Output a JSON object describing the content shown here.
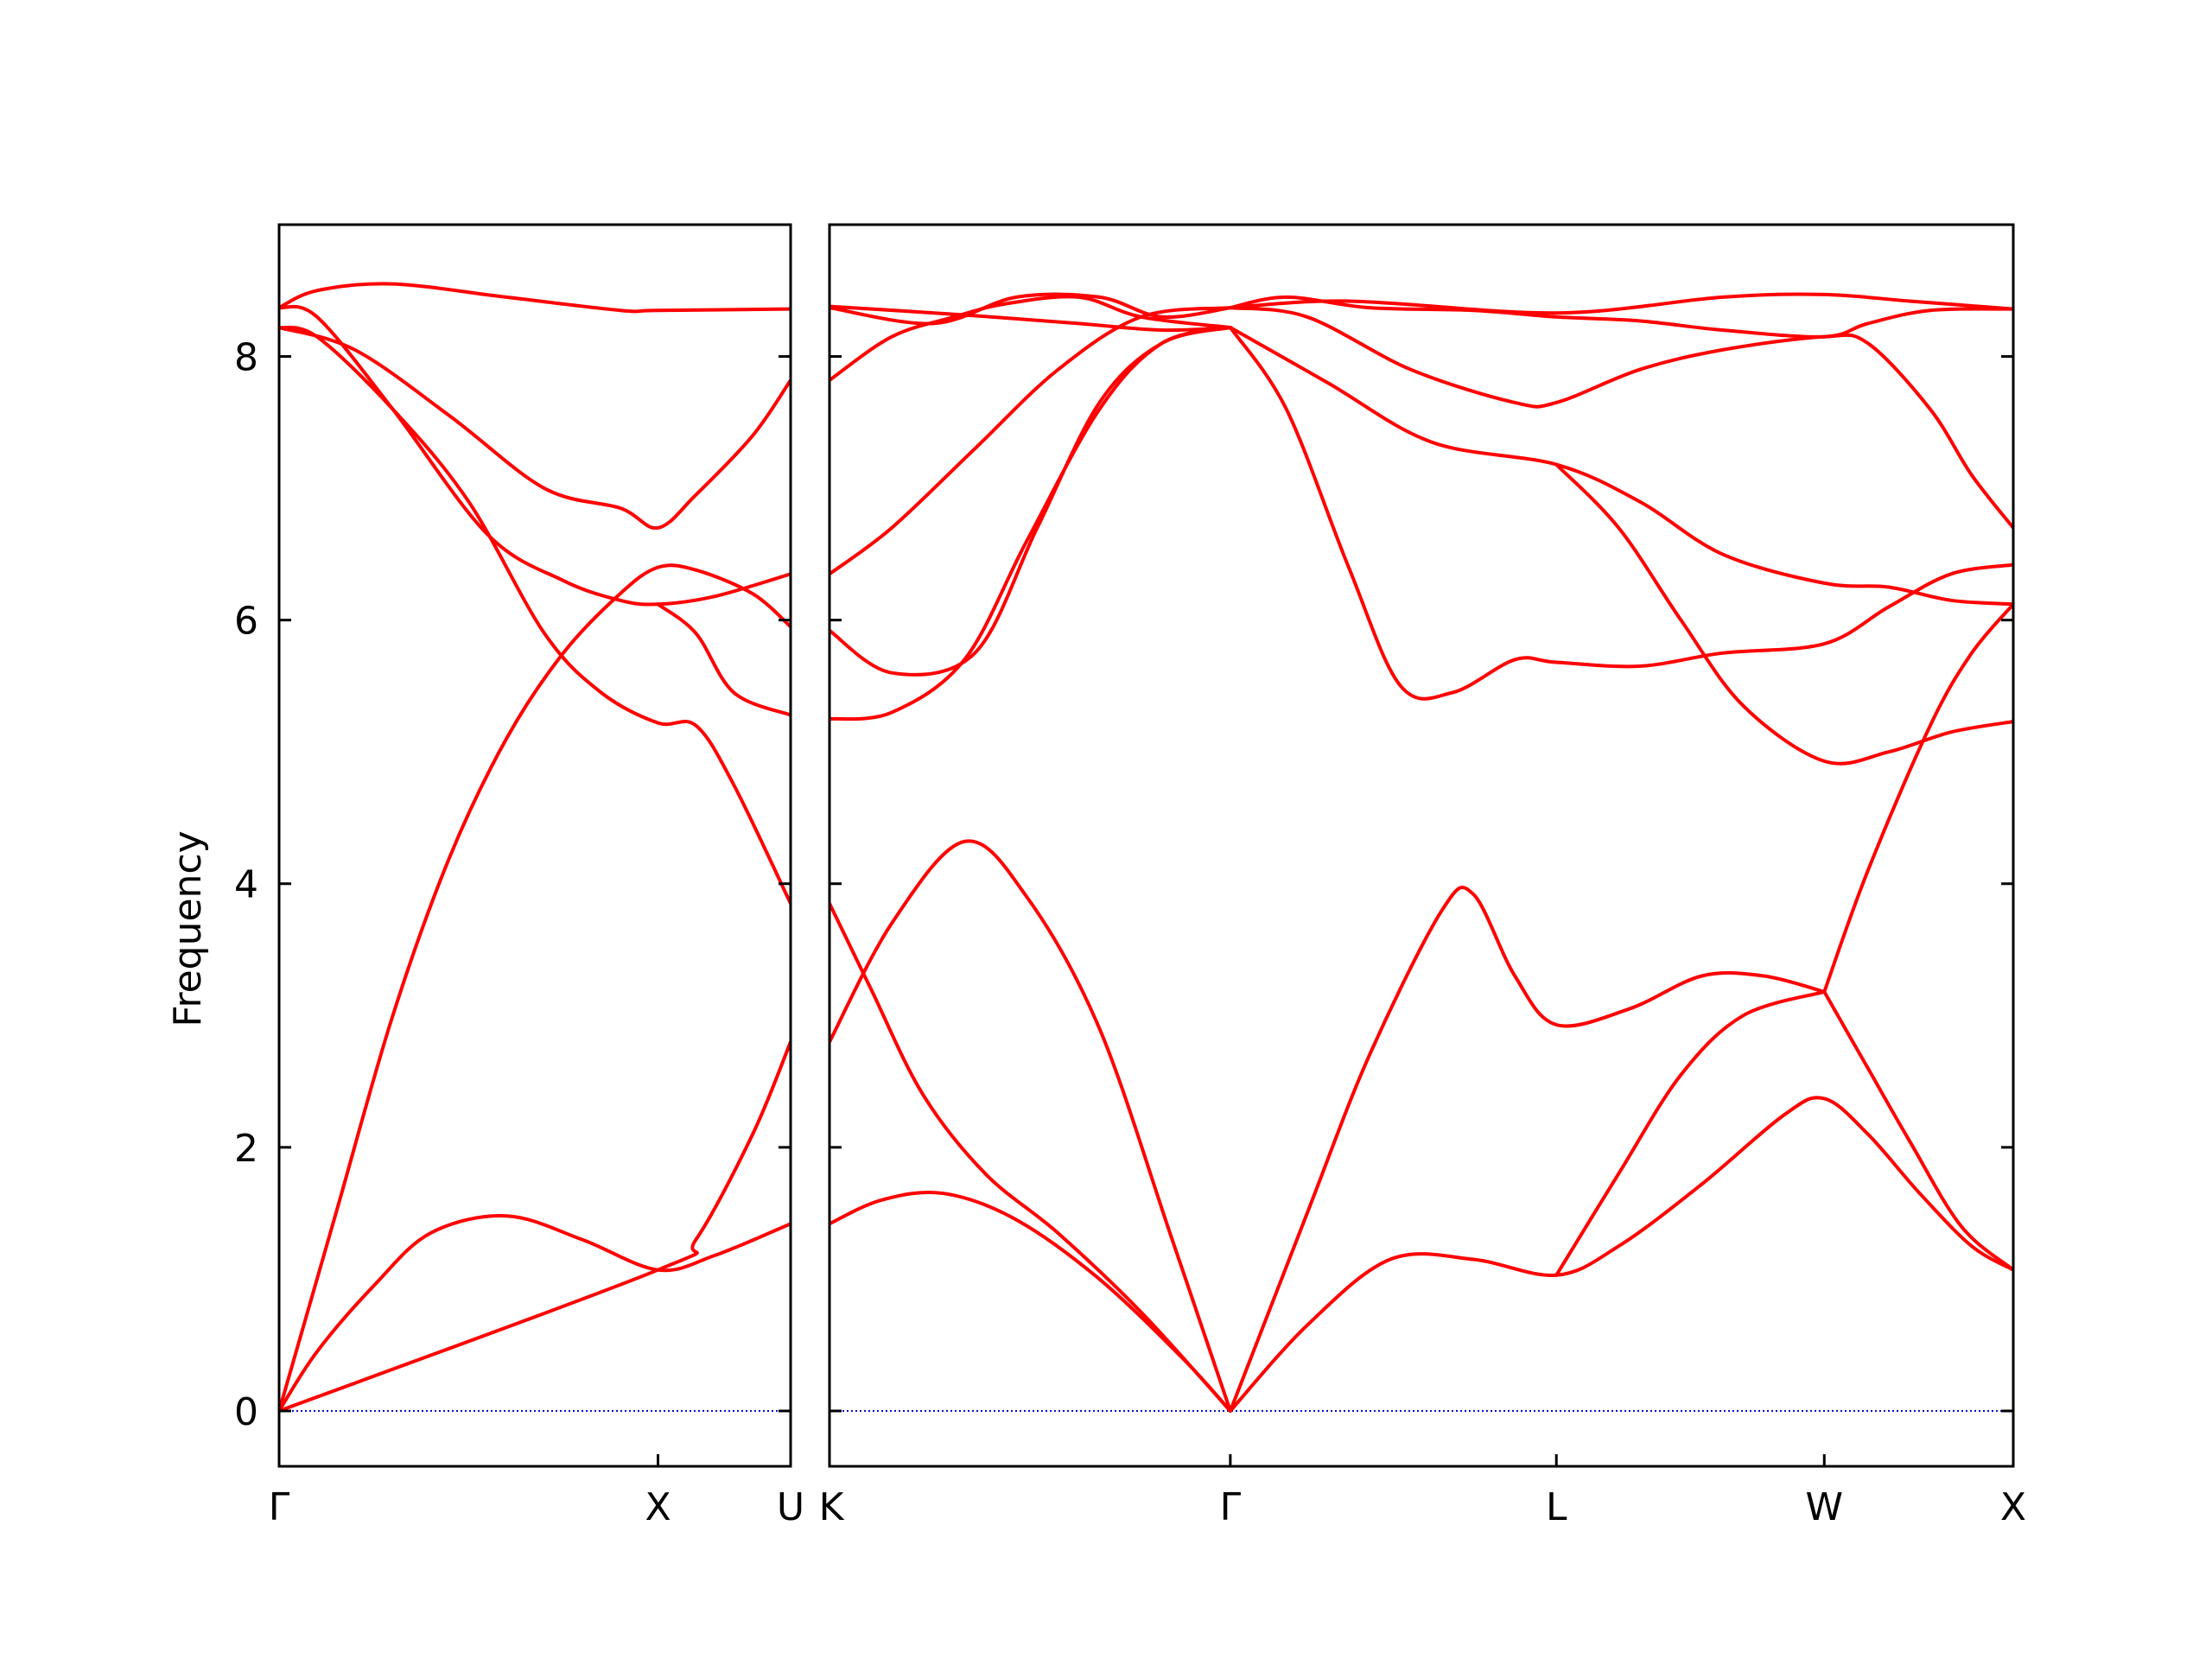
{
  "chart_data": {
    "type": "line",
    "ylabel": "Frequency",
    "ylim": [
      -0.42,
      9.0
    ],
    "yticks": [
      0,
      2,
      4,
      6,
      8
    ],
    "colors": {
      "bands": "#ff0000",
      "zero_line": "#0000cc",
      "axes": "#000000"
    },
    "panels": [
      {
        "name": "Γ-X-U",
        "xlim": [
          0,
          1.35
        ],
        "labels": [
          {
            "pos": 0,
            "text": "Γ"
          },
          {
            "pos": 1.0,
            "text": "X"
          },
          {
            "pos": 1.35,
            "text": "U"
          }
        ],
        "bands": [
          [
            [
              0,
              0
            ],
            [
              0.1,
              0.45
            ],
            [
              0.25,
              0.95
            ],
            [
              0.4,
              1.35
            ],
            [
              0.6,
              1.48
            ],
            [
              0.8,
              1.3
            ],
            [
              1.0,
              1.07
            ],
            [
              1.15,
              1.18
            ],
            [
              1.35,
              1.42
            ]
          ],
          [
            [
              0,
              0
            ],
            [
              0.15,
              1.5
            ],
            [
              0.3,
              3.0
            ],
            [
              0.45,
              4.2
            ],
            [
              0.6,
              5.1
            ],
            [
              0.75,
              5.75
            ],
            [
              0.9,
              6.2
            ],
            [
              1.0,
              6.4
            ],
            [
              1.1,
              6.38
            ],
            [
              1.25,
              6.2
            ],
            [
              1.35,
              5.95
            ]
          ],
          [
            [
              0,
              8.22
            ],
            [
              0.1,
              8.15
            ],
            [
              0.3,
              7.6
            ],
            [
              0.5,
              6.9
            ],
            [
              0.7,
              5.9
            ],
            [
              0.85,
              5.45
            ],
            [
              1.0,
              5.22
            ],
            [
              1.1,
              5.2
            ],
            [
              1.2,
              4.75
            ],
            [
              1.35,
              3.85
            ]
          ],
          [
            [
              0,
              8.37
            ],
            [
              0.1,
              8.3
            ],
            [
              0.3,
              7.6
            ],
            [
              0.55,
              6.65
            ],
            [
              0.75,
              6.3
            ],
            [
              0.9,
              6.15
            ],
            [
              1.0,
              6.12
            ],
            [
              1.15,
              6.18
            ],
            [
              1.35,
              6.35
            ]
          ],
          [
            [
              0,
              8.22
            ],
            [
              0.2,
              8.05
            ],
            [
              0.45,
              7.55
            ],
            [
              0.7,
              7.0
            ],
            [
              0.9,
              6.85
            ],
            [
              1.0,
              6.7
            ],
            [
              1.1,
              6.95
            ],
            [
              1.25,
              7.4
            ],
            [
              1.35,
              7.82
            ]
          ],
          [
            [
              0,
              8.37
            ],
            [
              0.1,
              8.5
            ],
            [
              0.3,
              8.55
            ],
            [
              0.6,
              8.45
            ],
            [
              0.9,
              8.35
            ],
            [
              1.0,
              8.35
            ],
            [
              1.35,
              8.36
            ]
          ],
          [
            [
              0,
              0
            ],
            [
              1.0,
              1.07
            ],
            [
              1.1,
              1.3
            ],
            [
              1.25,
              2.1
            ],
            [
              1.35,
              2.8
            ]
          ],
          [
            [
              1.0,
              6.12
            ],
            [
              1.1,
              5.9
            ],
            [
              1.2,
              5.45
            ],
            [
              1.35,
              5.28
            ]
          ]
        ]
      },
      {
        "name": "K-Γ-L-W-X",
        "xlim": [
          0,
          5.7
        ],
        "labels": [
          {
            "pos": 0,
            "text": "K"
          },
          {
            "pos": 1.93,
            "text": "Γ"
          },
          {
            "pos": 3.5,
            "text": "L"
          },
          {
            "pos": 4.79,
            "text": "W"
          },
          {
            "pos": 5.7,
            "text": "X"
          }
        ],
        "bands": [
          [
            [
              0,
              1.42
            ],
            [
              0.25,
              1.6
            ],
            [
              0.55,
              1.65
            ],
            [
              0.9,
              1.45
            ],
            [
              1.3,
              1.0
            ],
            [
              1.7,
              0.4
            ],
            [
              1.93,
              0
            ]
          ],
          [
            [
              0,
              2.8
            ],
            [
              0.3,
              3.7
            ],
            [
              0.65,
              4.32
            ],
            [
              0.95,
              3.9
            ],
            [
              1.3,
              2.9
            ],
            [
              1.65,
              1.3
            ],
            [
              1.93,
              0
            ]
          ],
          [
            [
              0,
              3.85
            ],
            [
              0.2,
              3.2
            ],
            [
              0.45,
              2.4
            ],
            [
              0.75,
              1.8
            ],
            [
              1.1,
              1.35
            ],
            [
              1.5,
              0.75
            ],
            [
              1.93,
              0
            ]
          ],
          [
            [
              0,
              5.25
            ],
            [
              0.3,
              5.3
            ],
            [
              0.65,
              5.7
            ],
            [
              0.95,
              6.6
            ],
            [
              1.3,
              7.6
            ],
            [
              1.6,
              8.1
            ],
            [
              1.93,
              8.22
            ]
          ],
          [
            [
              0,
              5.92
            ],
            [
              0.3,
              5.6
            ],
            [
              0.7,
              5.75
            ],
            [
              1.0,
              6.7
            ],
            [
              1.3,
              7.65
            ],
            [
              1.6,
              8.1
            ],
            [
              1.93,
              8.22
            ]
          ],
          [
            [
              0,
              6.35
            ],
            [
              0.3,
              6.7
            ],
            [
              0.7,
              7.3
            ],
            [
              1.1,
              7.9
            ],
            [
              1.5,
              8.3
            ],
            [
              1.93,
              8.37
            ]
          ],
          [
            [
              0,
              7.82
            ],
            [
              0.3,
              8.15
            ],
            [
              0.6,
              8.3
            ],
            [
              0.85,
              8.4
            ],
            [
              1.2,
              8.45
            ],
            [
              1.5,
              8.3
            ],
            [
              1.93,
              8.22
            ]
          ],
          [
            [
              0,
              8.37
            ],
            [
              0.5,
              8.25
            ],
            [
              0.9,
              8.45
            ],
            [
              1.3,
              8.45
            ],
            [
              1.6,
              8.3
            ],
            [
              1.93,
              8.37
            ]
          ],
          [
            [
              0,
              8.38
            ],
            [
              0.6,
              8.32
            ],
            [
              1.2,
              8.25
            ],
            [
              1.6,
              8.2
            ],
            [
              1.93,
              8.22
            ]
          ],
          [
            [
              1.93,
              0
            ],
            [
              2.3,
              0.65
            ],
            [
              2.7,
              1.15
            ],
            [
              3.1,
              1.15
            ],
            [
              3.5,
              1.03
            ],
            [
              3.8,
              1.25
            ],
            [
              4.2,
              1.72
            ],
            [
              4.6,
              2.25
            ],
            [
              4.79,
              2.37
            ],
            [
              5.0,
              2.1
            ],
            [
              5.25,
              1.65
            ],
            [
              5.5,
              1.25
            ],
            [
              5.7,
              1.07
            ]
          ],
          [
            [
              1.93,
              0
            ],
            [
              2.3,
              1.5
            ],
            [
              2.6,
              2.7
            ],
            [
              2.95,
              3.8
            ],
            [
              3.1,
              3.92
            ],
            [
              3.3,
              3.3
            ],
            [
              3.5,
              2.93
            ],
            [
              3.85,
              3.05
            ],
            [
              4.2,
              3.3
            ],
            [
              4.5,
              3.3
            ],
            [
              4.79,
              3.18
            ]
          ],
          [
            [
              3.5,
              1.03
            ],
            [
              3.8,
              1.8
            ],
            [
              4.1,
              2.55
            ],
            [
              4.4,
              3.0
            ],
            [
              4.79,
              3.18
            ]
          ],
          [
            [
              4.79,
              3.18
            ],
            [
              5.0,
              2.6
            ],
            [
              5.2,
              2.05
            ],
            [
              5.45,
              1.4
            ],
            [
              5.7,
              1.07
            ]
          ],
          [
            [
              4.79,
              3.18
            ],
            [
              5.0,
              4.1
            ],
            [
              5.3,
              5.2
            ],
            [
              5.5,
              5.75
            ],
            [
              5.7,
              6.12
            ]
          ],
          [
            [
              1.93,
              8.22
            ],
            [
              2.2,
              7.6
            ],
            [
              2.5,
              6.4
            ],
            [
              2.75,
              5.5
            ],
            [
              3.0,
              5.45
            ],
            [
              3.3,
              5.7
            ],
            [
              3.5,
              5.68
            ],
            [
              3.9,
              5.65
            ],
            [
              4.3,
              5.75
            ],
            [
              4.79,
              5.82
            ],
            [
              5.1,
              6.1
            ],
            [
              5.4,
              6.35
            ],
            [
              5.7,
              6.42
            ]
          ],
          [
            [
              1.93,
              8.22
            ],
            [
              2.4,
              7.8
            ],
            [
              2.9,
              7.35
            ],
            [
              3.5,
              7.18
            ],
            [
              3.9,
              6.9
            ],
            [
              4.3,
              6.5
            ],
            [
              4.79,
              6.28
            ],
            [
              5.1,
              6.25
            ],
            [
              5.4,
              6.15
            ],
            [
              5.7,
              6.12
            ]
          ],
          [
            [
              3.5,
              7.18
            ],
            [
              3.8,
              6.7
            ],
            [
              4.1,
              6.0
            ],
            [
              4.4,
              5.35
            ],
            [
              4.79,
              4.93
            ],
            [
              5.1,
              5.0
            ],
            [
              5.4,
              5.15
            ],
            [
              5.7,
              5.23
            ]
          ],
          [
            [
              1.93,
              8.37
            ],
            [
              2.3,
              8.3
            ],
            [
              2.8,
              7.9
            ],
            [
              3.3,
              7.65
            ],
            [
              3.5,
              7.65
            ],
            [
              3.9,
              7.9
            ],
            [
              4.3,
              8.05
            ],
            [
              4.79,
              8.15
            ],
            [
              5.0,
              8.1
            ],
            [
              5.3,
              7.6
            ],
            [
              5.5,
              7.1
            ],
            [
              5.7,
              6.7
            ]
          ],
          [
            [
              1.93,
              8.37
            ],
            [
              2.2,
              8.45
            ],
            [
              2.6,
              8.37
            ],
            [
              3.1,
              8.35
            ],
            [
              3.5,
              8.3
            ],
            [
              3.9,
              8.27
            ],
            [
              4.3,
              8.2
            ],
            [
              4.79,
              8.15
            ],
            [
              5.0,
              8.25
            ],
            [
              5.3,
              8.35
            ],
            [
              5.7,
              8.36
            ]
          ],
          [
            [
              1.93,
              8.37
            ],
            [
              2.5,
              8.42
            ],
            [
              3.5,
              8.33
            ],
            [
              4.3,
              8.45
            ],
            [
              4.79,
              8.47
            ],
            [
              5.2,
              8.42
            ],
            [
              5.7,
              8.36
            ]
          ]
        ]
      }
    ]
  }
}
